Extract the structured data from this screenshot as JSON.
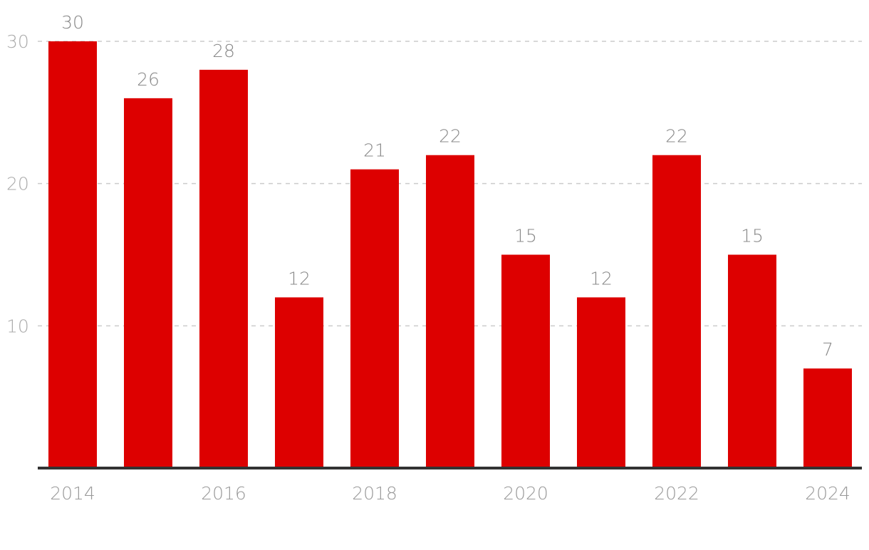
{
  "chart_data": {
    "type": "bar",
    "title": "",
    "xlabel": "",
    "ylabel": "",
    "categories": [
      "2014",
      "2015",
      "2016",
      "2017",
      "2018",
      "2019",
      "2020",
      "2021",
      "2022",
      "2023",
      "2024"
    ],
    "values": [
      30,
      26,
      28,
      12,
      21,
      22,
      15,
      12,
      22,
      15,
      7
    ],
    "ylim": [
      0,
      30
    ],
    "y_ticks": [
      "10",
      "20",
      "30"
    ],
    "x_tick_labels": [
      "2014",
      "2016",
      "2018",
      "2020",
      "2022",
      "2024"
    ],
    "data_labels": [
      "30",
      "26",
      "28",
      "12",
      "21",
      "22",
      "15",
      "12",
      "22",
      "15",
      "7"
    ],
    "grid": true,
    "legend": "none"
  },
  "colors": {
    "bar": "#dd0000",
    "grid": "#cccccc",
    "axis": "#333333",
    "tick_text": "#aaaaaa",
    "x_tick_text": "#999999",
    "data_label_text": "#888888"
  }
}
